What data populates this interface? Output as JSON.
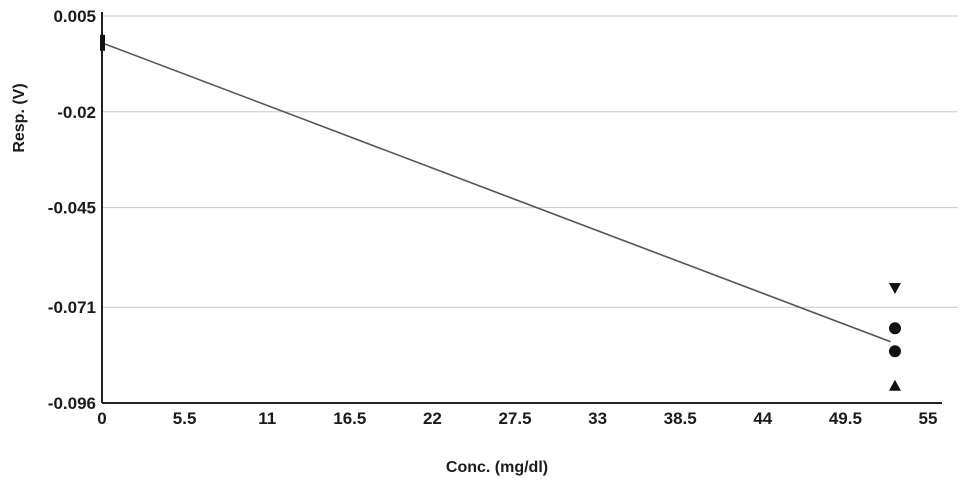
{
  "chart_data": {
    "type": "line",
    "xlabel": "Conc. (mg/dl)",
    "ylabel": "Resp. (V)",
    "xlim": [
      0,
      55
    ],
    "ylim": [
      -0.096,
      0.005
    ],
    "x_ticks": [
      "0",
      "5.5",
      "11",
      "16.5",
      "22",
      "27.5",
      "33",
      "38.5",
      "44",
      "49.5",
      "55"
    ],
    "y_ticks": [
      "0.005",
      "-0.02",
      "-0.045",
      "-0.071",
      "-0.096"
    ],
    "grid": "horizontal",
    "series": [
      {
        "kind": "line",
        "x": [
          0,
          52.5
        ],
        "y": [
          -0.002,
          -0.08
        ]
      },
      {
        "kind": "markers",
        "points": [
          {
            "x": 0,
            "y": -0.002,
            "marker": "bar"
          },
          {
            "x": 52.8,
            "y": -0.066,
            "marker": "triangle-down"
          },
          {
            "x": 52.8,
            "y": -0.0765,
            "marker": "circle"
          },
          {
            "x": 52.8,
            "y": -0.0825,
            "marker": "circle"
          },
          {
            "x": 52.8,
            "y": -0.0915,
            "marker": "triangle-up"
          }
        ]
      }
    ],
    "colors": {
      "line": "#555555",
      "markers": "#111111",
      "grid": "#c8c8c8",
      "axis": "#222222"
    }
  }
}
